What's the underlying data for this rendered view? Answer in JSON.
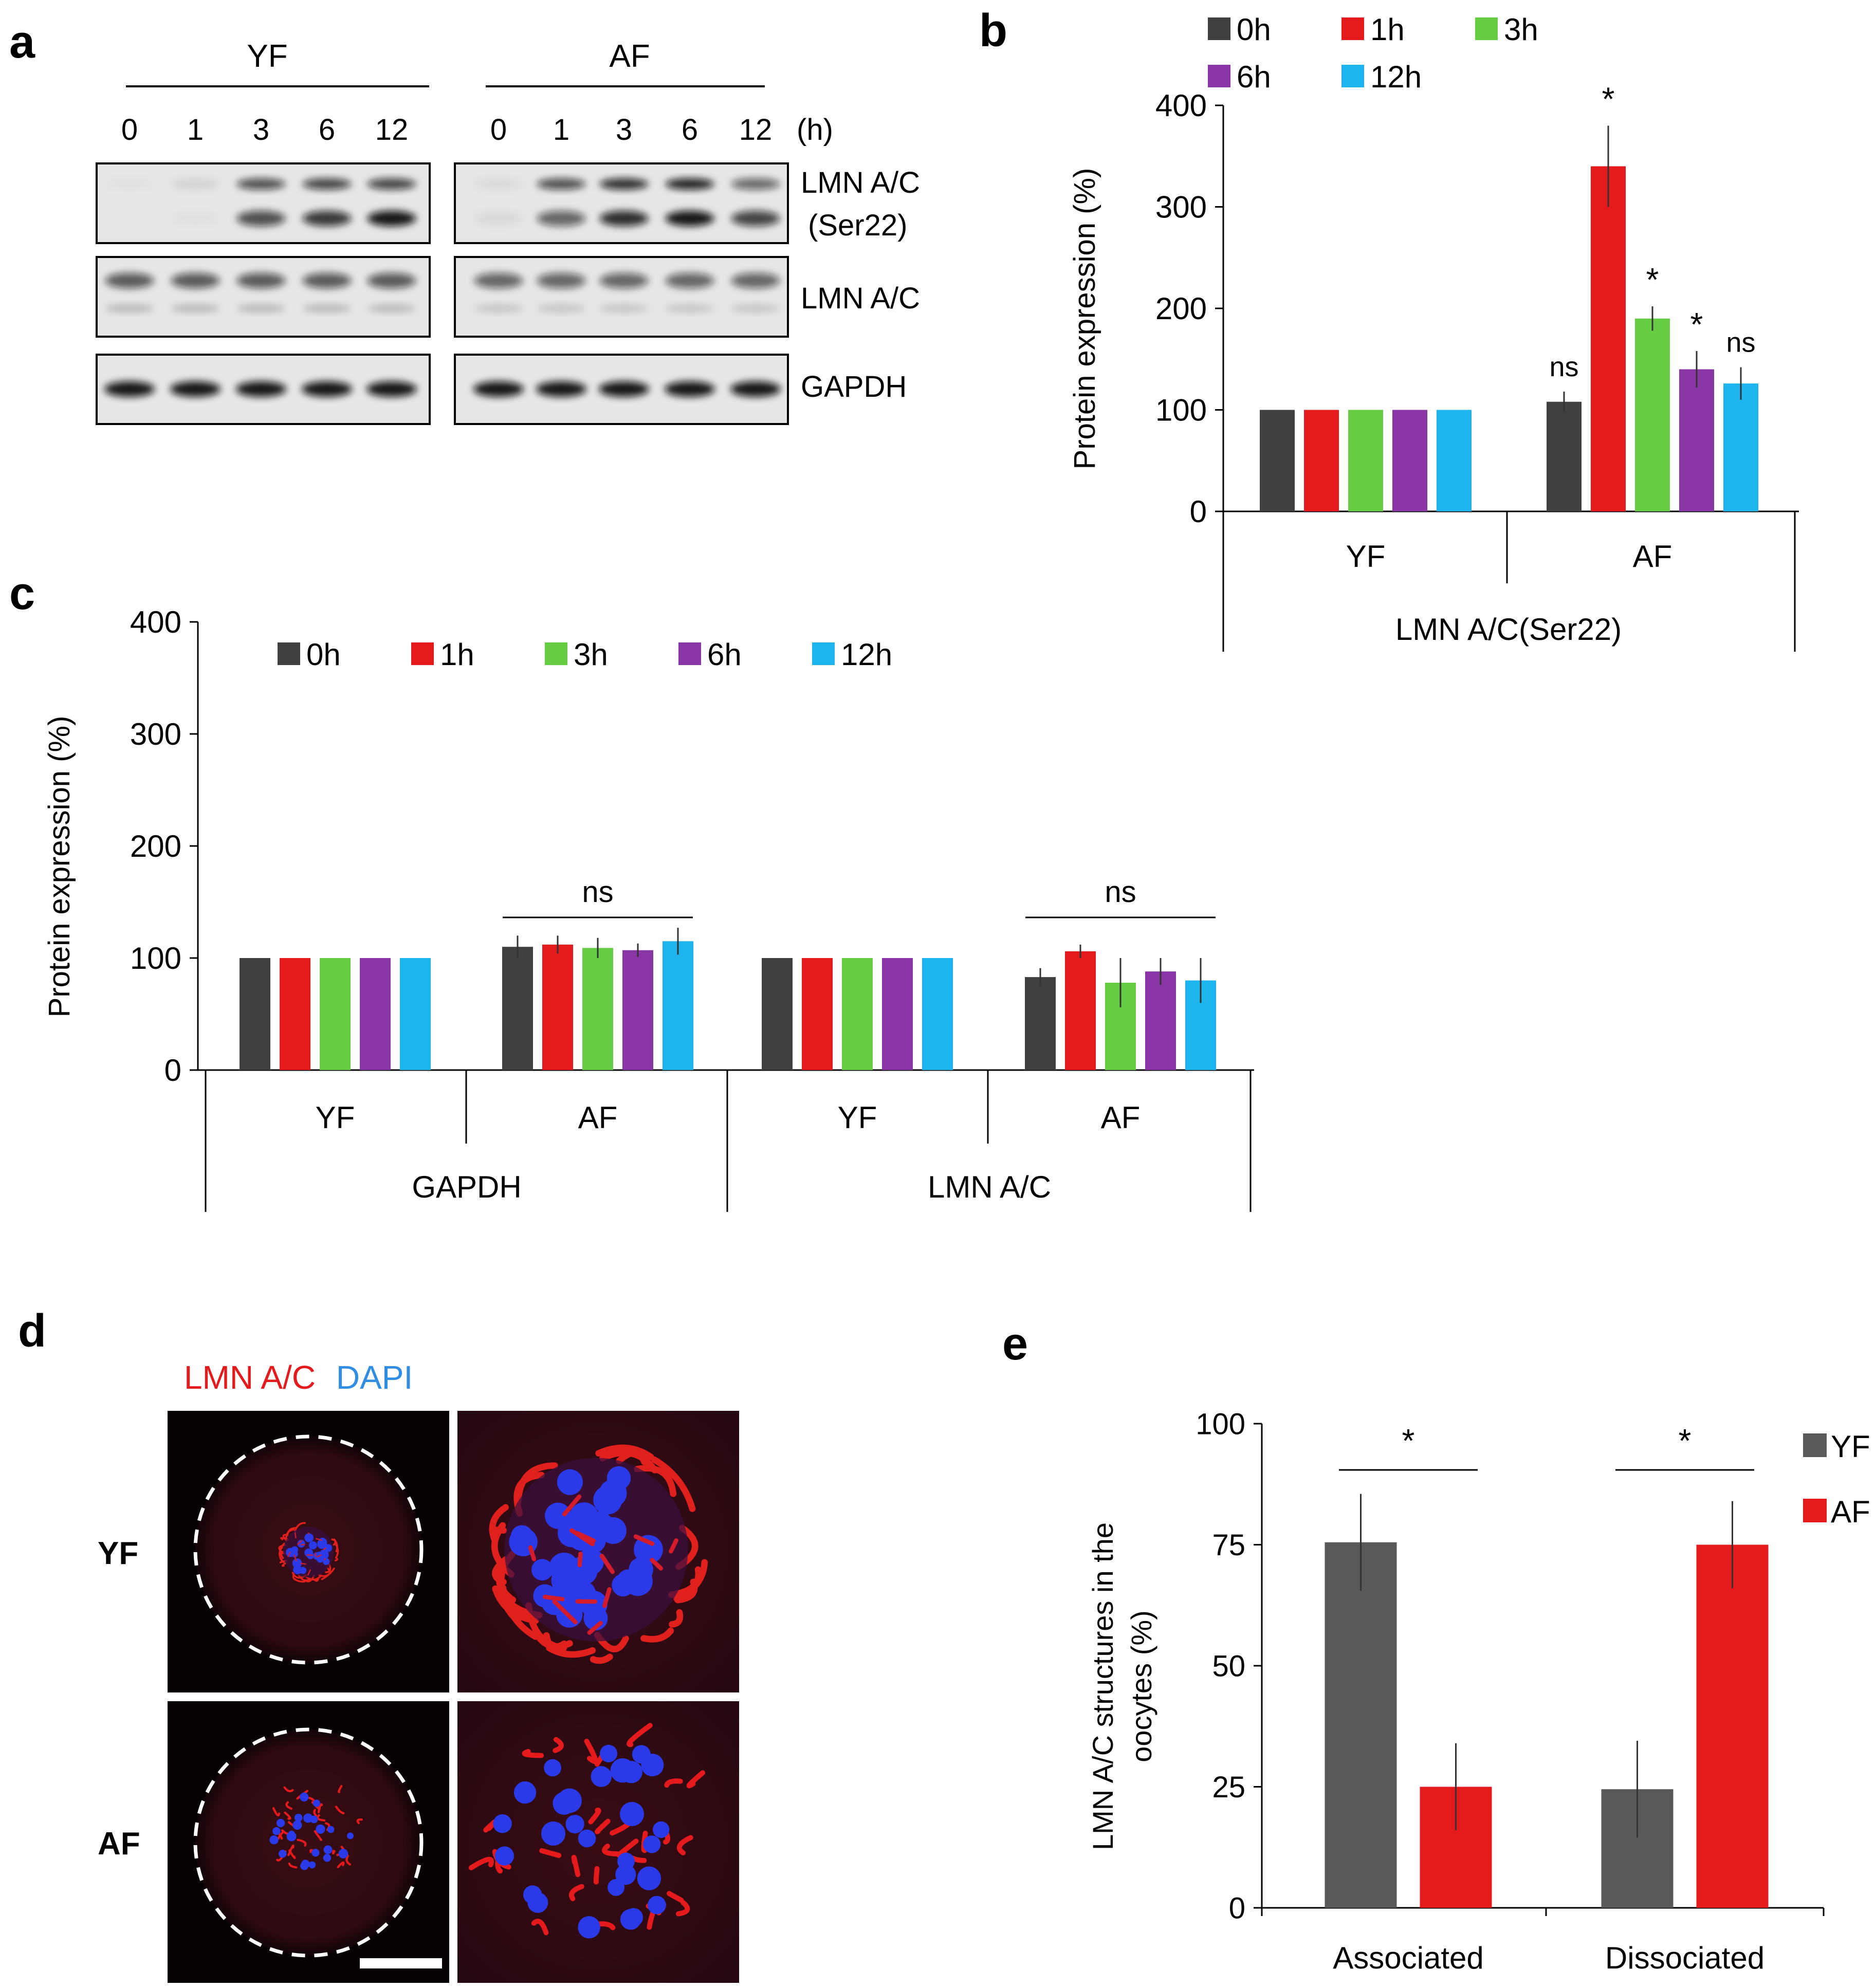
{
  "colors": {
    "h0": "#404040",
    "h1": "#e41a1c",
    "h3": "#66cc44",
    "h6": "#8a35a6",
    "h12": "#1eb4ee",
    "yf": "#595959",
    "af": "#e41a1c",
    "lmn_label": "#e41a1c",
    "dapi_label": "#2f8de4"
  },
  "panels": {
    "a": {
      "label": "a",
      "groups": [
        "YF",
        "AF"
      ],
      "timepoints": [
        "0",
        "1",
        "3",
        "6",
        "12"
      ],
      "unit": "(h)",
      "blots": [
        {
          "line1": "LMN A/C",
          "line2": "(Ser22)"
        },
        {
          "line1": "LMN A/C",
          "line2": ""
        },
        {
          "line1": "GAPDH",
          "line2": ""
        }
      ]
    },
    "b": {
      "label": "b"
    },
    "c": {
      "label": "c"
    },
    "d": {
      "label": "d",
      "stain1": "LMN A/C",
      "stain2": "DAPI",
      "rows": [
        "YF",
        "AF"
      ],
      "image_icons": [
        "oocyte-micrograph-icon",
        "spindle-zoom-micrograph-icon"
      ]
    },
    "e": {
      "label": "e"
    }
  },
  "chart_data": [
    {
      "id": "b",
      "type": "bar",
      "ylabel": "Protein expression (%)",
      "ylim": [
        0,
        400
      ],
      "yticks": [
        0,
        100,
        200,
        300,
        400
      ],
      "legend": [
        "0h",
        "1h",
        "3h",
        "6h",
        "12h"
      ],
      "legend_position": "top",
      "groups": [
        "YF",
        "AF"
      ],
      "outer_groups": [
        "LMN A/C(Ser22)"
      ],
      "series": [
        {
          "name": "0h",
          "values": [
            100,
            108
          ],
          "errors": [
            0,
            10
          ],
          "sig": [
            "",
            "ns"
          ]
        },
        {
          "name": "1h",
          "values": [
            100,
            340
          ],
          "errors": [
            0,
            40
          ],
          "sig": [
            "",
            "*"
          ]
        },
        {
          "name": "3h",
          "values": [
            100,
            190
          ],
          "errors": [
            0,
            12
          ],
          "sig": [
            "",
            "*"
          ]
        },
        {
          "name": "6h",
          "values": [
            100,
            140
          ],
          "errors": [
            0,
            18
          ],
          "sig": [
            "",
            "*"
          ]
        },
        {
          "name": "12h",
          "values": [
            100,
            126
          ],
          "errors": [
            0,
            16
          ],
          "sig": [
            "",
            "ns"
          ]
        }
      ]
    },
    {
      "id": "c",
      "type": "bar",
      "ylabel": "Protein expression (%)",
      "ylim": [
        0,
        400
      ],
      "yticks": [
        0,
        100,
        200,
        300,
        400
      ],
      "legend": [
        "0h",
        "1h",
        "3h",
        "6h",
        "12h"
      ],
      "legend_position": "top",
      "groups": [
        "YF",
        "AF",
        "YF",
        "AF"
      ],
      "outer_groups": [
        "GAPDH",
        "LMN A/C"
      ],
      "bracket_labels": [
        "",
        "ns",
        "",
        "ns"
      ],
      "series": [
        {
          "name": "0h",
          "values": [
            100,
            110,
            100,
            83
          ],
          "errors": [
            0,
            10,
            0,
            8
          ]
        },
        {
          "name": "1h",
          "values": [
            100,
            112,
            100,
            106
          ],
          "errors": [
            0,
            8,
            0,
            6
          ]
        },
        {
          "name": "3h",
          "values": [
            100,
            109,
            100,
            78
          ],
          "errors": [
            0,
            9,
            0,
            22
          ]
        },
        {
          "name": "6h",
          "values": [
            100,
            107,
            100,
            88
          ],
          "errors": [
            0,
            6,
            0,
            12
          ]
        },
        {
          "name": "12h",
          "values": [
            100,
            115,
            100,
            80
          ],
          "errors": [
            0,
            12,
            0,
            20
          ]
        }
      ]
    },
    {
      "id": "e",
      "type": "bar",
      "ylabel_lines": [
        "LMN A/C structures in the",
        "oocytes (%)"
      ],
      "ylim": [
        0,
        100
      ],
      "yticks": [
        0,
        25,
        50,
        75,
        100
      ],
      "categories": [
        "Associated",
        "Dissociated"
      ],
      "legend": [
        "YF",
        "AF"
      ],
      "legend_position": "right",
      "series": [
        {
          "name": "YF",
          "values": [
            75.5,
            24.5
          ],
          "errors": [
            10,
            10
          ]
        },
        {
          "name": "AF",
          "values": [
            25,
            75
          ],
          "errors": [
            9,
            9
          ]
        }
      ],
      "sig": [
        "*",
        "*"
      ]
    }
  ]
}
